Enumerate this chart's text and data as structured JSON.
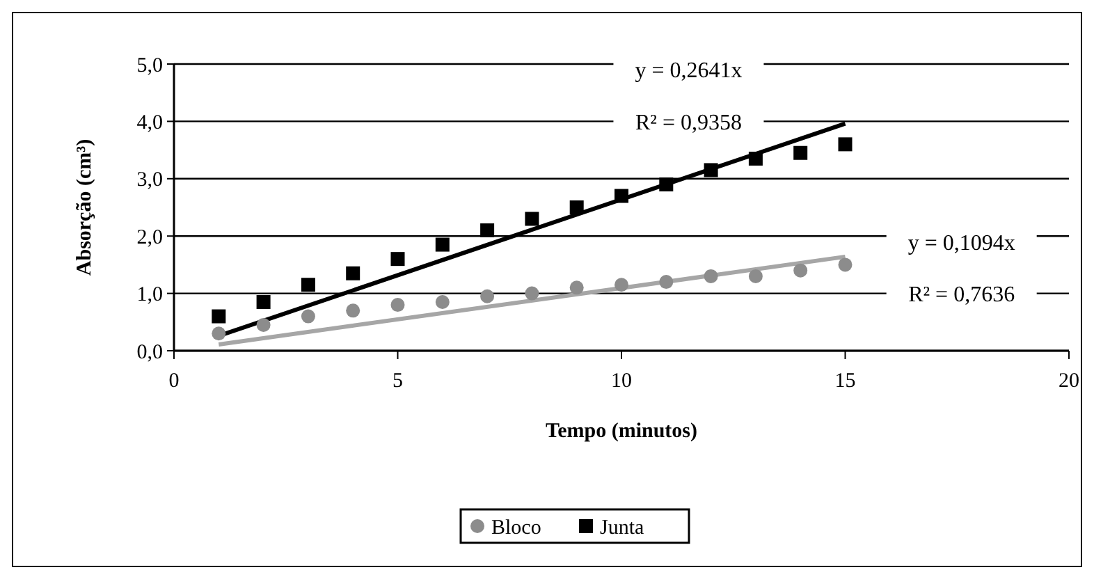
{
  "chart_data": {
    "type": "scatter",
    "xlabel": "Tempo (minutos)",
    "ylabel": "Absorção (cm³)",
    "xlim": [
      0,
      20
    ],
    "xticks": [
      0,
      5,
      10,
      15,
      20
    ],
    "ylim": [
      0,
      5
    ],
    "yticks": [
      {
        "value": 0,
        "label": "0,0"
      },
      {
        "value": 1,
        "label": "1,0"
      },
      {
        "value": 2,
        "label": "2,0"
      },
      {
        "value": 3,
        "label": "3,0"
      },
      {
        "value": 4,
        "label": "4,0"
      },
      {
        "value": 5,
        "label": "5,0"
      }
    ],
    "grid": "y",
    "legend": "bottom",
    "series": [
      {
        "name": "Bloco",
        "marker": "circle",
        "color": "#8c8c8c",
        "x": [
          1,
          2,
          3,
          4,
          5,
          6,
          7,
          8,
          9,
          10,
          11,
          12,
          13,
          14,
          15
        ],
        "values": [
          0.3,
          0.45,
          0.6,
          0.7,
          0.8,
          0.85,
          0.95,
          1.0,
          1.1,
          1.15,
          1.2,
          1.3,
          1.3,
          1.4,
          1.5
        ]
      },
      {
        "name": "Junta",
        "marker": "square",
        "color": "#000000",
        "x": [
          1,
          2,
          3,
          4,
          5,
          6,
          7,
          8,
          9,
          10,
          11,
          12,
          13,
          14,
          15
        ],
        "values": [
          0.6,
          0.85,
          1.15,
          1.35,
          1.6,
          1.85,
          2.1,
          2.3,
          2.5,
          2.7,
          2.9,
          3.15,
          3.35,
          3.45,
          3.6
        ]
      },
      {
        "type": "line",
        "marker": "none",
        "line_style": "solid",
        "color": "#000000",
        "x": [
          1,
          15
        ],
        "values": [
          0.26,
          3.96
        ]
      },
      {
        "type": "line",
        "marker": "none",
        "line_style": "solid",
        "color": "#a6a6a6",
        "x": [
          1,
          15
        ],
        "values": [
          0.11,
          1.64
        ]
      }
    ],
    "annotations": [
      "y = 0,2641x",
      "R² = 0,9358",
      "y = 0,1094x",
      "R² = 0,7636"
    ]
  }
}
